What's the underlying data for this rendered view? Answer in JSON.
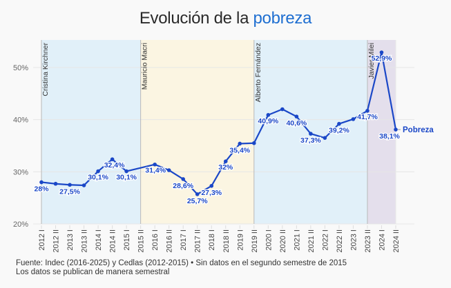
{
  "title": {
    "prefix": "Evolución de la",
    "accent": "pobreza",
    "accent_color": "#1f6fd1"
  },
  "chart_data": {
    "type": "line",
    "title": "Evolución de la pobreza",
    "xlabel": "",
    "ylabel": "",
    "ylim": [
      20,
      55
    ],
    "yticks": [
      20,
      30,
      40,
      50
    ],
    "ytick_labels": [
      "20%",
      "30%",
      "40%",
      "50%"
    ],
    "grid": true,
    "categories": [
      "2012 I",
      "2012 II",
      "2013 I",
      "2013 II",
      "2014 I",
      "2014 II",
      "2015 I",
      "2015 II",
      "2016 I",
      "2016 II",
      "2017 I",
      "2017 II",
      "2018 I",
      "2018 II",
      "2019 I",
      "2019 II",
      "2020 I",
      "2020 II",
      "2021 I",
      "2021 II",
      "2022 I",
      "2022 II",
      "2023 I",
      "2023 II",
      "2024 I",
      "2024 II"
    ],
    "series": [
      {
        "name": "Pobreza",
        "color": "#1a47c7",
        "values": [
          28,
          27.7,
          27.5,
          27.4,
          30.1,
          32.4,
          30.1,
          null,
          31.4,
          30.3,
          28.6,
          25.7,
          27.3,
          32,
          35.4,
          35.5,
          40.9,
          42,
          40.6,
          37.3,
          36.5,
          39.2,
          40.1,
          41.7,
          52.9,
          38.1
        ],
        "labels": [
          "28%",
          null,
          "27,5%",
          null,
          "30,1%",
          "32,4%",
          "30,1%",
          null,
          "31,4%",
          null,
          "28,6%",
          "25,7%",
          "27,3%",
          "32%",
          "35,4%",
          null,
          "40,9%",
          null,
          "40,6%",
          "37,3%",
          null,
          "39,2%",
          null,
          "41,7%",
          "52,9%",
          "38,1%"
        ]
      }
    ],
    "periods": [
      {
        "name": "Cristina Kirchner",
        "start": "2012 I",
        "end": "2015 II",
        "color": "#e1f0f9"
      },
      {
        "name": "Mauricio Macri",
        "start": "2015 II",
        "end": "2019 II",
        "color": "#fbf5e2"
      },
      {
        "name": "Alberto Fernández",
        "start": "2019 II",
        "end": "2023 II",
        "color": "#e1f0f9"
      },
      {
        "name": "Javier Milei",
        "start": "2023 II",
        "end": "2024 II",
        "color": "#e4dfec"
      }
    ],
    "legend": "end-of-line label"
  },
  "footer": {
    "line1": "Fuente: Indec (2016-2025) y Cedlas (2012-2015) • Sin datos en el segundo semestre de 2015",
    "line2": "Los datos se publican de manera semestral"
  }
}
